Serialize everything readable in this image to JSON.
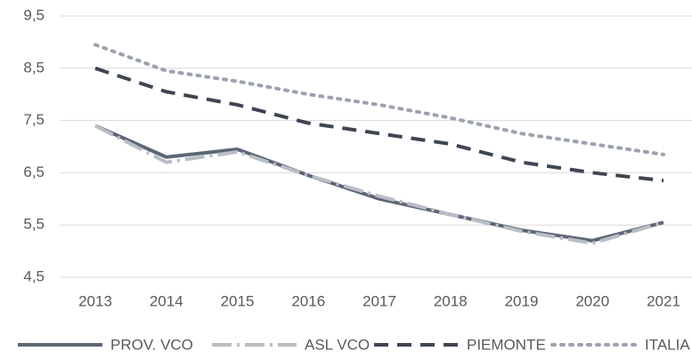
{
  "chart_data": {
    "type": "line",
    "categories": [
      "2013",
      "2014",
      "2015",
      "2016",
      "2017",
      "2018",
      "2019",
      "2020",
      "2021"
    ],
    "series": [
      {
        "name": "PROV. VCO",
        "color": "#5a6778",
        "line_style": "solid",
        "values": [
          7.4,
          6.8,
          6.95,
          6.45,
          6.0,
          5.7,
          5.4,
          5.2,
          5.55
        ]
      },
      {
        "name": "ASL VCO",
        "color": "#b8bec6",
        "line_style": "long-dash-dot",
        "values": [
          7.4,
          6.7,
          6.9,
          6.45,
          6.05,
          5.7,
          5.38,
          5.15,
          5.55
        ]
      },
      {
        "name": "PIEMONTE",
        "color": "#3d4653",
        "line_style": "dash",
        "values": [
          8.5,
          8.05,
          7.8,
          7.45,
          7.25,
          7.05,
          6.7,
          6.5,
          6.35
        ]
      },
      {
        "name": "ITALIA",
        "color": "#9aa3ae",
        "line_style": "dot",
        "values": [
          8.95,
          8.45,
          8.25,
          8.0,
          7.8,
          7.55,
          7.25,
          7.05,
          6.85
        ]
      }
    ],
    "ylim": [
      4.5,
      9.5
    ],
    "yticks": [
      {
        "value": 4.5,
        "label": "4,5"
      },
      {
        "value": 5.5,
        "label": "5,5"
      },
      {
        "value": 6.5,
        "label": "6,5"
      },
      {
        "value": 7.5,
        "label": "7,5"
      },
      {
        "value": 8.5,
        "label": "8,5"
      },
      {
        "value": 9.5,
        "label": "9,5"
      }
    ],
    "grid": true,
    "legend": "bottom"
  }
}
